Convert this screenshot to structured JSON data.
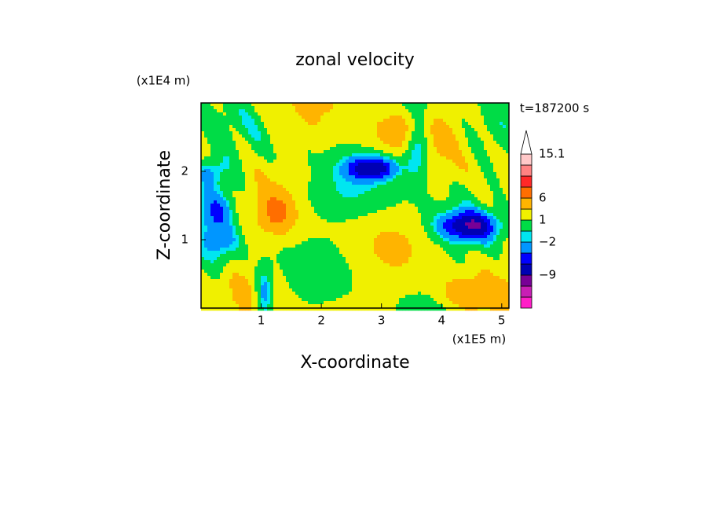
{
  "chart_data": {
    "type": "contour",
    "title": "zonal velocity",
    "x_label": "X-coordinate",
    "y_label": "Z-coordinate",
    "x_unit": "(x1E5 m)",
    "y_unit": "(x1E4 m)",
    "time_label": "t=187200 s",
    "xlim": [
      0,
      5.12
    ],
    "xticks": [
      1,
      2,
      3,
      4,
      5
    ],
    "ylim": [
      0,
      3.0
    ],
    "yticks": [
      1,
      2
    ],
    "colorbar": {
      "levels": [
        -18,
        -15,
        -12,
        -9,
        -6,
        -4,
        -2,
        -1,
        1,
        3,
        6,
        9,
        12,
        14,
        15.1
      ],
      "colors": [
        "#ff1ec8",
        "#c81eb4",
        "#780096",
        "#0000b4",
        "#0000ff",
        "#0096ff",
        "#00e6f0",
        "#00dc46",
        "#f0f000",
        "#ffb400",
        "#ff6e00",
        "#ff2828",
        "#ff8282",
        "#ffc8c8"
      ],
      "ticks": [
        {
          "value": -9,
          "label": "−9"
        },
        {
          "value": -2,
          "label": "−2"
        },
        1,
        6,
        15.1
      ]
    }
  }
}
